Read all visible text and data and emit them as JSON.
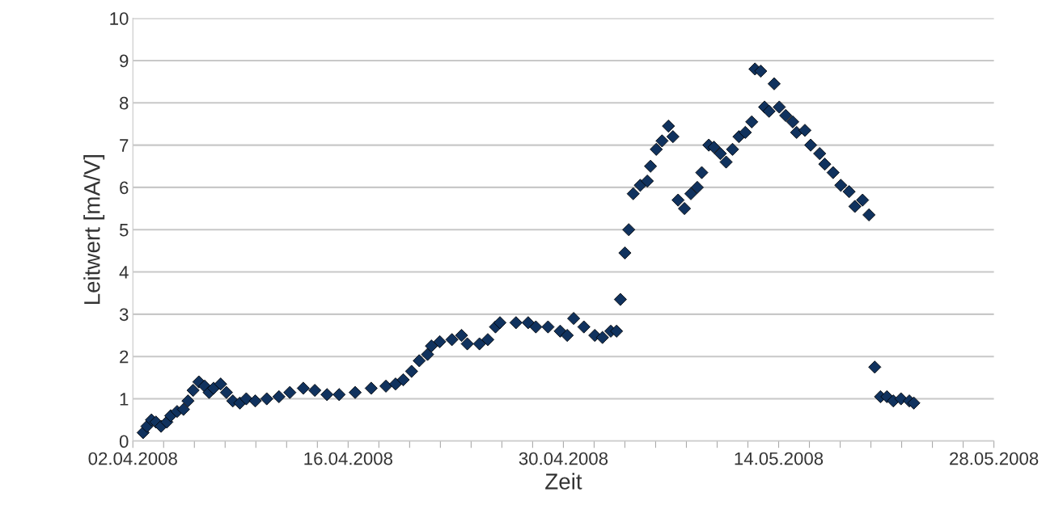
{
  "chart_data": {
    "type": "scatter",
    "xlabel": "Zeit",
    "ylabel": "Leitwert [mA/V]",
    "x": [
      "2008-04-02T16:00",
      "2008-04-02T22:00",
      "2008-04-03T05:00",
      "2008-04-03T12:00",
      "2008-04-03T20:00",
      "2008-04-04T05:00",
      "2008-04-04T11:00",
      "2008-04-04T21:00",
      "2008-04-05T07:00",
      "2008-04-05T14:00",
      "2008-04-05T22:00",
      "2008-04-06T07:00",
      "2008-04-06T16:00",
      "2008-04-06T23:00",
      "2008-04-07T06:00",
      "2008-04-07T17:00",
      "2008-04-08T02:00",
      "2008-04-08T12:00",
      "2008-04-08T23:00",
      "2008-04-09T09:00",
      "2008-04-09T23:00",
      "2008-04-10T17:00",
      "2008-04-11T12:00",
      "2008-04-12T05:00",
      "2008-04-13T02:00",
      "2008-04-13T20:00",
      "2008-04-14T15:00",
      "2008-04-15T10:00",
      "2008-04-16T11:00",
      "2008-04-17T12:00",
      "2008-04-18T11:00",
      "2008-04-19T02:00",
      "2008-04-19T14:00",
      "2008-04-20T03:00",
      "2008-04-20T15:00",
      "2008-04-21T04:00",
      "2008-04-21T10:00",
      "2008-04-21T23:00",
      "2008-04-22T18:00",
      "2008-04-23T09:00",
      "2008-04-23T18:00",
      "2008-04-24T13:00",
      "2008-04-25T02:00",
      "2008-04-25T14:00",
      "2008-04-25T21:00",
      "2008-04-26T22:00",
      "2008-04-27T17:00",
      "2008-04-28T05:00",
      "2008-04-29T00:00",
      "2008-04-29T19:00",
      "2008-04-30T06:00",
      "2008-04-30T16:00",
      "2008-05-01T08:00",
      "2008-05-02T01:00",
      "2008-05-02T13:00",
      "2008-05-03T02:00",
      "2008-05-03T11:00",
      "2008-05-03T17:00",
      "2008-05-04T00:00",
      "2008-05-04T06:00",
      "2008-05-04T13:00",
      "2008-05-05T00:00",
      "2008-05-05T11:00",
      "2008-05-05T16:00",
      "2008-05-06T01:00",
      "2008-05-06T10:00",
      "2008-05-06T20:00",
      "2008-05-07T03:00",
      "2008-05-07T11:00",
      "2008-05-07T21:00",
      "2008-05-08T07:00",
      "2008-05-08T17:00",
      "2008-05-09T00:00",
      "2008-05-09T11:00",
      "2008-05-09T19:00",
      "2008-05-10T05:00",
      "2008-05-10T14:00",
      "2008-05-11T00:00",
      "2008-05-11T10:00",
      "2008-05-11T20:00",
      "2008-05-12T06:00",
      "2008-05-12T11:00",
      "2008-05-12T20:00",
      "2008-05-13T02:00",
      "2008-05-13T09:00",
      "2008-05-13T17:00",
      "2008-05-14T01:00",
      "2008-05-14T11:00",
      "2008-05-14T22:00",
      "2008-05-15T04:00",
      "2008-05-15T17:00",
      "2008-05-16T02:00",
      "2008-05-16T16:00",
      "2008-05-17T00:00",
      "2008-05-17T13:00",
      "2008-05-18T01:00",
      "2008-05-18T14:00",
      "2008-05-18T23:00",
      "2008-05-19T11:00",
      "2008-05-19T21:00",
      "2008-05-20T06:00",
      "2008-05-20T15:00",
      "2008-05-21T01:00",
      "2008-05-21T11:00",
      "2008-05-21T23:00",
      "2008-05-22T12:00",
      "2008-05-22T19:00"
    ],
    "series": [
      {
        "color": "#10325e",
        "values": [
          0.2,
          0.35,
          0.5,
          0.45,
          0.35,
          0.45,
          0.6,
          0.7,
          0.75,
          0.95,
          1.2,
          1.4,
          1.3,
          1.15,
          1.25,
          1.35,
          1.15,
          0.95,
          0.9,
          1.0,
          0.95,
          1.0,
          1.05,
          1.15,
          1.25,
          1.2,
          1.1,
          1.1,
          1.15,
          1.25,
          1.3,
          1.35,
          1.45,
          1.65,
          1.9,
          2.05,
          2.25,
          2.35,
          2.4,
          2.5,
          2.3,
          2.3,
          2.4,
          2.7,
          2.8,
          2.8,
          2.8,
          2.7,
          2.7,
          2.6,
          2.5,
          2.9,
          2.7,
          2.5,
          2.45,
          2.6,
          2.6,
          3.35,
          4.45,
          5.0,
          5.85,
          6.05,
          6.15,
          6.5,
          6.9,
          7.1,
          7.45,
          7.2,
          5.7,
          5.5,
          5.85,
          6.0,
          6.35,
          7.0,
          6.95,
          6.8,
          6.6,
          6.9,
          7.2,
          7.3,
          7.55,
          8.8,
          8.75,
          7.9,
          7.8,
          8.45,
          7.9,
          7.7,
          7.55,
          7.3,
          7.35,
          7.0,
          6.8,
          6.55,
          6.35,
          6.05,
          5.9,
          5.55,
          5.7,
          5.35,
          1.75,
          1.05,
          1.05,
          0.95,
          1.0,
          0.95,
          0.9
        ]
      }
    ],
    "marker": "diamond",
    "grid": "y",
    "xlim": [
      "2008-04-02",
      "2008-05-28"
    ],
    "xticks": [
      {
        "value": "2008-04-02",
        "label": "02.04.2008"
      },
      {
        "value": "2008-04-04",
        "label": null
      },
      {
        "value": "2008-04-06",
        "label": null
      },
      {
        "value": "2008-04-08",
        "label": null
      },
      {
        "value": "2008-04-10",
        "label": null
      },
      {
        "value": "2008-04-12",
        "label": null
      },
      {
        "value": "2008-04-14",
        "label": null
      },
      {
        "value": "2008-04-16",
        "label": "16.04.2008"
      },
      {
        "value": "2008-04-18",
        "label": null
      },
      {
        "value": "2008-04-20",
        "label": null
      },
      {
        "value": "2008-04-22",
        "label": null
      },
      {
        "value": "2008-04-24",
        "label": null
      },
      {
        "value": "2008-04-26",
        "label": null
      },
      {
        "value": "2008-04-28",
        "label": null
      },
      {
        "value": "2008-04-30",
        "label": "30.04.2008"
      },
      {
        "value": "2008-05-02",
        "label": null
      },
      {
        "value": "2008-05-04",
        "label": null
      },
      {
        "value": "2008-05-06",
        "label": null
      },
      {
        "value": "2008-05-08",
        "label": null
      },
      {
        "value": "2008-05-10",
        "label": null
      },
      {
        "value": "2008-05-12",
        "label": null
      },
      {
        "value": "2008-05-14",
        "label": "14.05.2008"
      },
      {
        "value": "2008-05-16",
        "label": null
      },
      {
        "value": "2008-05-18",
        "label": null
      },
      {
        "value": "2008-05-20",
        "label": null
      },
      {
        "value": "2008-05-22",
        "label": null
      },
      {
        "value": "2008-05-24",
        "label": null
      },
      {
        "value": "2008-05-26",
        "label": null
      },
      {
        "value": "2008-05-28",
        "label": "28.05.2008"
      }
    ],
    "ylim": [
      0,
      10
    ],
    "yticks": [
      0,
      1,
      2,
      3,
      4,
      5,
      6,
      7,
      8,
      9,
      10
    ]
  }
}
